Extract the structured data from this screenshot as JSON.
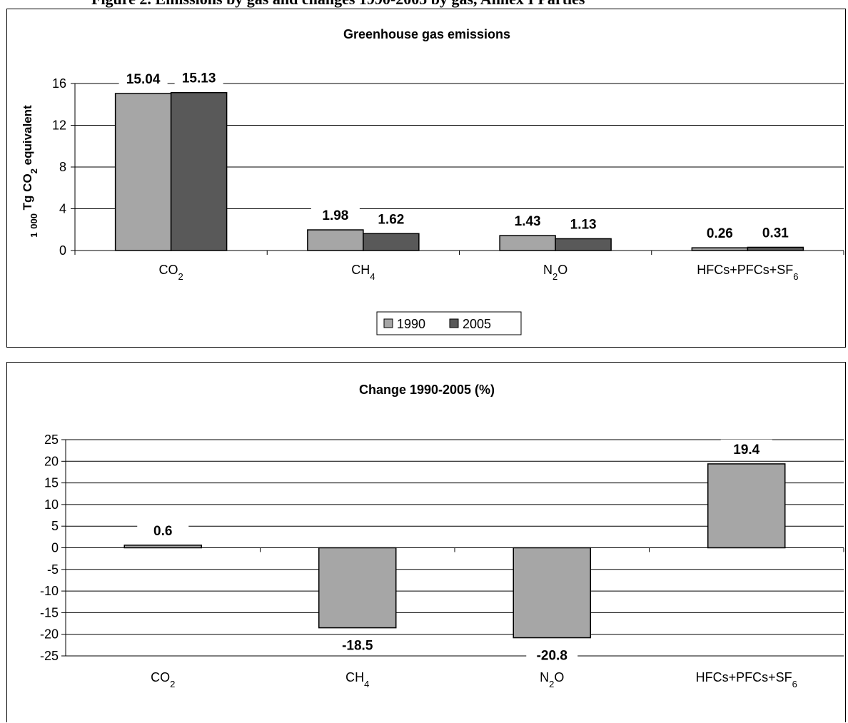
{
  "page_heading": "Figure 2. Emissions by gas and changes 1990-2005 by gas, Annex I Parties",
  "chart_data": [
    {
      "type": "bar",
      "title": "Greenhouse gas emissions",
      "ylabel": "1 000 Tg CO2 equivalent",
      "xlabel": "",
      "categories": [
        "CO2",
        "CH4",
        "N2O",
        "HFCs+PFCs+SF6"
      ],
      "series": [
        {
          "name": "1990",
          "values": [
            15.04,
            1.98,
            1.43,
            0.26
          ],
          "color": "#a6a6a6"
        },
        {
          "name": "2005",
          "values": [
            15.13,
            1.62,
            1.13,
            0.31
          ],
          "color": "#595959"
        }
      ],
      "data_labels": [
        [
          "15.04",
          "1.98",
          "1.43",
          "0.26"
        ],
        [
          "15.13",
          "1.62",
          "1.13",
          "0.31"
        ]
      ],
      "ylim": [
        0,
        16
      ],
      "yticks": [
        0,
        4,
        8,
        12,
        16
      ],
      "grid": true,
      "legend": "bottom"
    },
    {
      "type": "bar",
      "title": "Change 1990-2005 (%)",
      "ylabel": "",
      "xlabel": "",
      "categories": [
        "CO2",
        "CH4",
        "N2O",
        "HFCs+PFCs+SF6"
      ],
      "values": [
        0.6,
        -18.5,
        -20.8,
        19.4
      ],
      "data_labels": [
        "0.6",
        "-18.5",
        "-20.8",
        "19.4"
      ],
      "color": "#a6a6a6",
      "ylim": [
        -25,
        25
      ],
      "yticks": [
        -25,
        -20,
        -15,
        -10,
        -5,
        0,
        5,
        10,
        15,
        20,
        25
      ],
      "grid": true,
      "legend": "none"
    }
  ]
}
